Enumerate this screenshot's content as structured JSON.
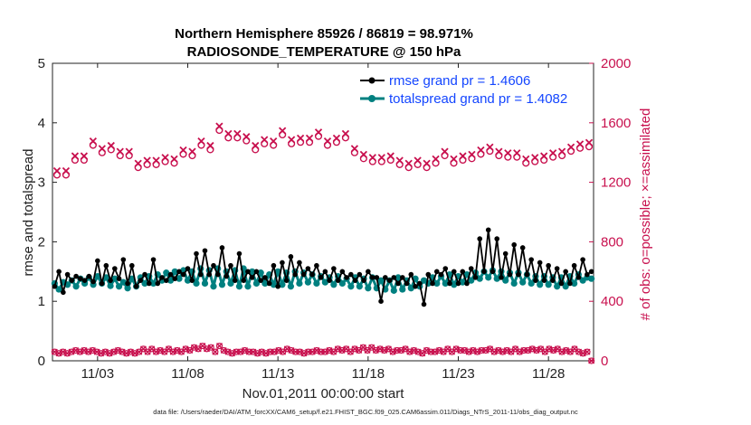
{
  "chart_data": {
    "type": "line",
    "title_line1": "Northern Hemisphere 85926 / 86819 = 98.971%",
    "title_line2": "RADIOSONDE_TEMPERATURE @ 150 hPa",
    "ylabel_left": "rmse and totalspread",
    "ylabel_right": "# of obs: o=possible; ×=assimilated",
    "xlabel": "Nov.01,2011 00:00:00 start",
    "footnote": "data file: /Users/raeder/DAI/ATM_forcXX/CAM6_setup/f.e21.FHIST_BGC.f09_025.CAM6assim.011/Diags_NTrS_2011-11/obs_diag_output.nc",
    "ylim_left": [
      0,
      5
    ],
    "ylim_right": [
      0,
      2000
    ],
    "xlim_days": [
      0.5,
      30.5
    ],
    "x_ticks": [
      {
        "day": 3,
        "label": "11/03"
      },
      {
        "day": 8,
        "label": "11/08"
      },
      {
        "day": 13,
        "label": "11/13"
      },
      {
        "day": 18,
        "label": "11/18"
      },
      {
        "day": 23,
        "label": "11/23"
      },
      {
        "day": 28,
        "label": "11/28"
      }
    ],
    "y_ticks_left": [
      "0",
      "1",
      "2",
      "3",
      "4",
      "5"
    ],
    "y_ticks_right": [
      "0",
      "400",
      "800",
      "1200",
      "1600",
      "2000"
    ],
    "colors": {
      "rmse": "#000000",
      "spread": "#008080",
      "obs": "#c8104e",
      "legend_text": "#1446ff"
    },
    "series": [
      {
        "name": "rmse grand pr = 1.4606",
        "key": "rmse",
        "values": [
          1.25,
          1.5,
          1.15,
          1.45,
          1.35,
          1.42,
          1.38,
          1.35,
          1.42,
          1.33,
          1.68,
          1.3,
          1.6,
          1.35,
          1.55,
          1.38,
          1.7,
          1.3,
          1.6,
          1.25,
          1.35,
          1.45,
          1.3,
          1.7,
          1.3,
          1.4,
          1.35,
          1.45,
          1.38,
          1.5,
          1.45,
          1.55,
          1.35,
          1.8,
          1.45,
          1.85,
          1.45,
          1.6,
          1.45,
          1.9,
          1.42,
          1.6,
          1.35,
          1.8,
          1.35,
          1.5,
          1.4,
          1.5,
          1.35,
          1.4,
          1.3,
          1.6,
          1.25,
          1.65,
          1.35,
          1.75,
          1.45,
          1.65,
          1.45,
          1.55,
          1.45,
          1.6,
          1.4,
          1.5,
          1.35,
          1.55,
          1.35,
          1.5,
          1.4,
          1.45,
          1.35,
          1.45,
          1.35,
          1.5,
          1.4,
          1.4,
          1.0,
          1.4,
          1.35,
          1.4,
          1.3,
          1.4,
          1.3,
          1.45,
          1.25,
          1.3,
          0.95,
          1.45,
          1.3,
          1.5,
          1.45,
          1.55,
          1.3,
          1.5,
          1.3,
          1.5,
          1.3,
          1.55,
          1.4,
          2.05,
          1.5,
          2.2,
          1.5,
          2.05,
          1.4,
          1.8,
          1.45,
          1.95,
          1.45,
          1.9,
          1.45,
          1.7,
          1.35,
          1.65,
          1.35,
          1.6,
          1.35,
          1.55,
          1.3,
          1.5,
          1.3,
          1.6,
          1.4,
          1.7,
          1.45,
          1.5
        ]
      },
      {
        "name": "totalspread grand pr = 1.4082",
        "key": "spread",
        "values": [
          1.3,
          1.2,
          1.32,
          1.28,
          1.35,
          1.25,
          1.38,
          1.3,
          1.4,
          1.28,
          1.42,
          1.3,
          1.4,
          1.26,
          1.38,
          1.25,
          1.32,
          1.22,
          1.38,
          1.25,
          1.4,
          1.3,
          1.42,
          1.3,
          1.45,
          1.35,
          1.48,
          1.35,
          1.5,
          1.38,
          1.52,
          1.35,
          1.5,
          1.3,
          1.55,
          1.3,
          1.52,
          1.25,
          1.55,
          1.28,
          1.5,
          1.3,
          1.52,
          1.25,
          1.55,
          1.25,
          1.5,
          1.3,
          1.48,
          1.3,
          1.45,
          1.28,
          1.5,
          1.28,
          1.48,
          1.25,
          1.5,
          1.3,
          1.48,
          1.32,
          1.45,
          1.3,
          1.42,
          1.32,
          1.4,
          1.28,
          1.42,
          1.3,
          1.38,
          1.25,
          1.4,
          1.25,
          1.38,
          1.22,
          1.4,
          1.22,
          1.35,
          1.2,
          1.35,
          1.18,
          1.4,
          1.2,
          1.35,
          1.22,
          1.38,
          1.25,
          1.35,
          1.3,
          1.4,
          1.3,
          1.42,
          1.3,
          1.45,
          1.28,
          1.42,
          1.32,
          1.45,
          1.35,
          1.48,
          1.38,
          1.5,
          1.4,
          1.52,
          1.38,
          1.5,
          1.35,
          1.48,
          1.3,
          1.48,
          1.32,
          1.45,
          1.3,
          1.42,
          1.28,
          1.42,
          1.28,
          1.4,
          1.25,
          1.4,
          1.25,
          1.42,
          1.3,
          1.45,
          1.35,
          1.4,
          1.38
        ]
      },
      {
        "name": "obs possible (upper)",
        "key": "obs_possible",
        "values": [
          1250,
          1250,
          1350,
          1350,
          1450,
          1400,
          1420,
          1380,
          1380,
          1300,
          1320,
          1320,
          1340,
          1330,
          1390,
          1380,
          1450,
          1420,
          1550,
          1500,
          1500,
          1480,
          1420,
          1460,
          1450,
          1520,
          1460,
          1470,
          1470,
          1510,
          1450,
          1470,
          1500,
          1400,
          1360,
          1340,
          1340,
          1350,
          1320,
          1300,
          1320,
          1300,
          1330,
          1380,
          1330,
          1350,
          1360,
          1390,
          1410,
          1380,
          1370,
          1370,
          1330,
          1340,
          1350,
          1370,
          1380,
          1410,
          1430,
          1440
        ]
      },
      {
        "name": "obs assimilated (upper)",
        "key": "obs_assim",
        "values": [
          1240,
          1240,
          1340,
          1340,
          1440,
          1390,
          1410,
          1370,
          1370,
          1290,
          1310,
          1310,
          1330,
          1320,
          1380,
          1370,
          1440,
          1410,
          1540,
          1490,
          1490,
          1470,
          1410,
          1450,
          1440,
          1510,
          1450,
          1460,
          1460,
          1500,
          1440,
          1460,
          1490,
          1390,
          1350,
          1330,
          1330,
          1340,
          1310,
          1290,
          1310,
          1290,
          1320,
          1370,
          1320,
          1340,
          1350,
          1380,
          1400,
          1370,
          1360,
          1360,
          1320,
          1330,
          1340,
          1360,
          1370,
          1400,
          1420,
          1430
        ]
      },
      {
        "name": "obs possible (lower)",
        "key": "obs_low",
        "values": [
          60,
          50,
          60,
          50,
          60,
          70,
          60,
          70,
          60,
          70,
          60,
          50,
          60,
          50,
          60,
          70,
          60,
          50,
          60,
          50,
          60,
          80,
          60,
          80,
          60,
          70,
          60,
          80,
          60,
          70,
          60,
          80,
          70,
          90,
          80,
          100,
          80,
          90,
          60,
          100,
          70,
          60,
          50,
          60,
          60,
          70,
          60,
          60,
          50,
          60,
          50,
          60,
          60,
          70,
          60,
          80,
          70,
          60,
          60,
          50,
          60,
          60,
          70,
          60,
          60,
          70,
          60,
          80,
          70,
          80,
          60,
          80,
          70,
          90,
          70,
          90,
          70,
          80,
          70,
          80,
          60,
          70,
          70,
          80,
          60,
          70,
          60,
          50,
          70,
          60,
          60,
          70,
          60,
          80,
          60,
          80,
          70,
          70,
          60,
          70,
          60,
          70,
          70,
          80,
          60,
          70,
          60,
          70,
          60,
          80,
          60,
          70,
          70,
          80,
          70,
          80,
          60,
          80,
          70,
          80,
          60,
          70,
          60,
          80,
          60,
          50,
          60,
          0
        ]
      }
    ],
    "legend_position": "top-right"
  }
}
